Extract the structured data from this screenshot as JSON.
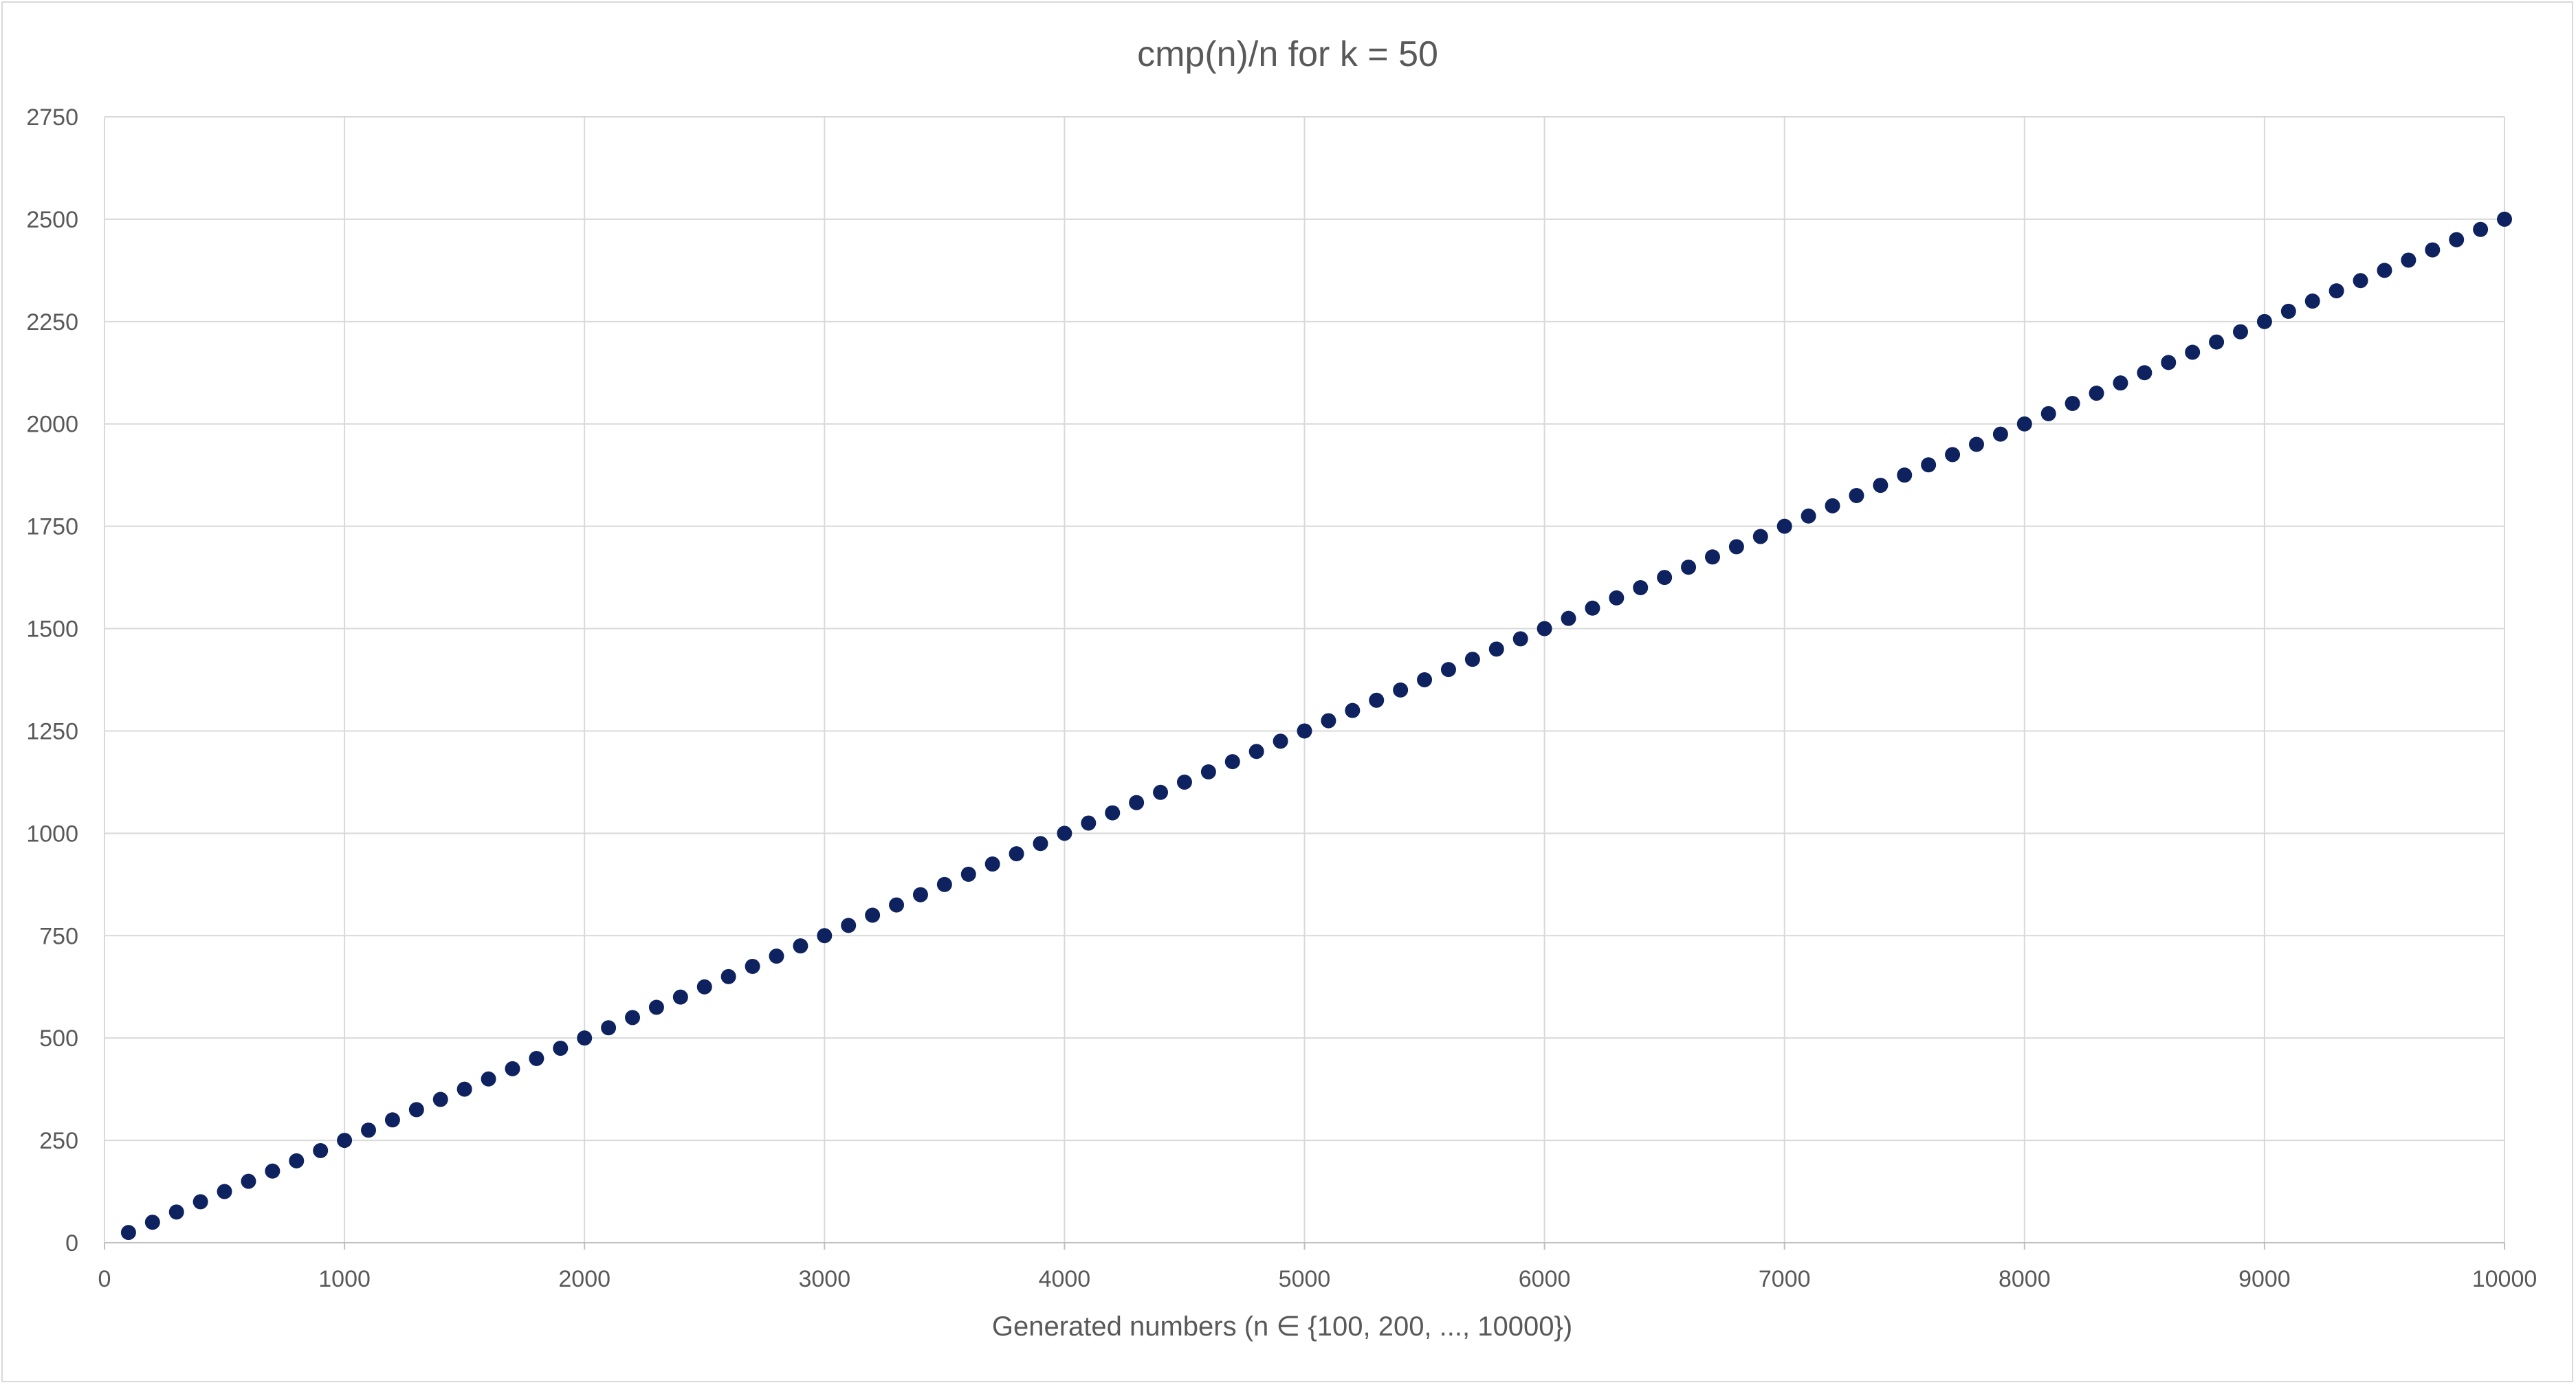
{
  "chart_data": {
    "type": "scatter",
    "title": "cmp(n)/n for k = 50",
    "xlabel": "Generated numbers (n ∈ {100, 200, ..., 10000})",
    "ylabel": "",
    "xlim": [
      0,
      10000
    ],
    "ylim": [
      0,
      2750
    ],
    "x_ticks": [
      0,
      1000,
      2000,
      3000,
      4000,
      5000,
      6000,
      7000,
      8000,
      9000,
      10000
    ],
    "y_ticks": [
      0,
      250,
      500,
      750,
      1000,
      1250,
      1500,
      1750,
      2000,
      2250,
      2500,
      2750
    ],
    "grid": true,
    "legend": "none",
    "marker_color": "#0e2260",
    "series": [
      {
        "x": [
          100,
          200,
          300,
          400,
          500,
          600,
          700,
          800,
          900,
          1000,
          1100,
          1200,
          1300,
          1400,
          1500,
          1600,
          1700,
          1800,
          1900,
          2000,
          2100,
          2200,
          2300,
          2400,
          2500,
          2600,
          2700,
          2800,
          2900,
          3000,
          3100,
          3200,
          3300,
          3400,
          3500,
          3600,
          3700,
          3800,
          3900,
          4000,
          4100,
          4200,
          4300,
          4400,
          4500,
          4600,
          4700,
          4800,
          4900,
          5000,
          5100,
          5200,
          5300,
          5400,
          5500,
          5600,
          5700,
          5800,
          5900,
          6000,
          6100,
          6200,
          6300,
          6400,
          6500,
          6600,
          6700,
          6800,
          6900,
          7000,
          7100,
          7200,
          7300,
          7400,
          7500,
          7600,
          7700,
          7800,
          7900,
          8000,
          8100,
          8200,
          8300,
          8400,
          8500,
          8600,
          8700,
          8800,
          8900,
          9000,
          9100,
          9200,
          9300,
          9400,
          9500,
          9600,
          9700,
          9800,
          9900,
          10000
        ],
        "y": [
          25,
          50,
          75,
          100,
          125,
          150,
          175,
          200,
          225,
          250,
          275,
          300,
          325,
          350,
          375,
          400,
          425,
          450,
          475,
          500,
          525,
          550,
          575,
          600,
          625,
          650,
          675,
          700,
          725,
          750,
          775,
          800,
          825,
          850,
          875,
          900,
          925,
          950,
          975,
          1000,
          1025,
          1050,
          1075,
          1100,
          1125,
          1150,
          1175,
          1200,
          1225,
          1250,
          1275,
          1300,
          1325,
          1350,
          1375,
          1400,
          1425,
          1450,
          1475,
          1500,
          1525,
          1550,
          1575,
          1600,
          1625,
          1650,
          1675,
          1700,
          1725,
          1750,
          1775,
          1800,
          1825,
          1850,
          1875,
          1900,
          1925,
          1950,
          1975,
          2000,
          2025,
          2050,
          2075,
          2100,
          2125,
          2150,
          2175,
          2200,
          2225,
          2250,
          2275,
          2300,
          2325,
          2350,
          2375,
          2400,
          2425,
          2450,
          2475,
          2500
        ]
      }
    ]
  }
}
